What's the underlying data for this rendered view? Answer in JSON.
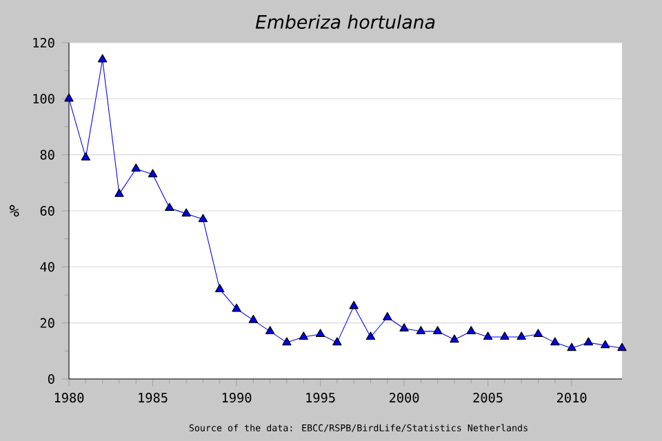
{
  "chart_data": {
    "type": "line",
    "title": "*Emberiza hortulana*",
    "ylabel": "%",
    "annotations": [
      "Source of the data: EBCC/RSPB/BirdLife/Statistics Netherlands"
    ],
    "x": [
      1980,
      1981,
      1982,
      1983,
      1984,
      1985,
      1986,
      1987,
      1988,
      1989,
      1990,
      1991,
      1992,
      1993,
      1994,
      1995,
      1996,
      1997,
      1998,
      1999,
      2000,
      2001,
      2002,
      2003,
      2004,
      2005,
      2006,
      2007,
      2008,
      2009,
      2010,
      2011,
      2012,
      2013
    ],
    "series": [
      {
        "color": "#0000ff",
        "values": [
          100,
          79,
          114,
          66,
          75,
          73,
          61,
          59,
          57,
          32,
          25,
          21,
          17,
          13,
          15,
          16,
          13,
          26,
          15,
          22,
          18,
          17,
          17,
          14,
          17,
          15,
          15,
          15,
          16,
          13,
          11,
          13,
          12,
          11
        ]
      }
    ],
    "xlim": [
      1980,
      2013
    ],
    "xticks": [
      1980,
      1985,
      1990,
      1995,
      2000,
      2005,
      2010
    ],
    "ylim": [
      0,
      120
    ],
    "yticks": [
      0,
      20,
      40,
      60,
      80,
      100,
      120
    ],
    "grid": "y",
    "marker": "triangle",
    "line_style": "solid"
  }
}
